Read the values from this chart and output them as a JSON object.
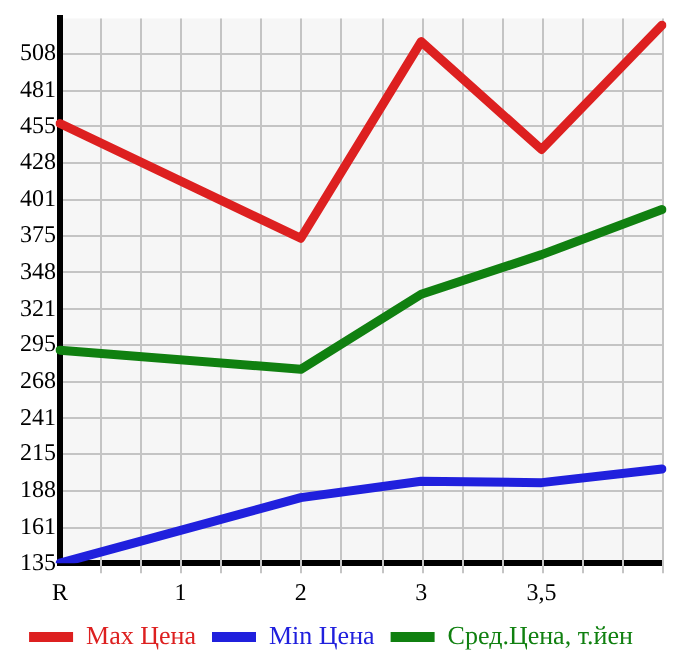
{
  "chart_data": {
    "type": "line",
    "categories": [
      "R",
      "1",
      "2",
      "3",
      "3,5",
      null
    ],
    "series": [
      {
        "name": "Max Цена",
        "color": "#dd2020",
        "values": [
          457,
          null,
          373,
          517,
          438,
          529
        ]
      },
      {
        "name": "Min Цена",
        "color": "#2020dd",
        "values": [
          135,
          null,
          183,
          195,
          194,
          204
        ]
      },
      {
        "name": "Сред.Цена, т.йен",
        "color": "#108010",
        "values": [
          291,
          null,
          277,
          332,
          361,
          394
        ]
      }
    ],
    "ylim": [
      135,
      534
    ],
    "yticks": [
      135,
      161,
      188,
      215,
      241,
      268,
      295,
      321,
      348,
      375,
      401,
      428,
      455,
      481,
      508
    ],
    "grid": true,
    "legend": "bottom",
    "marker": "none",
    "line_style": "solid"
  }
}
